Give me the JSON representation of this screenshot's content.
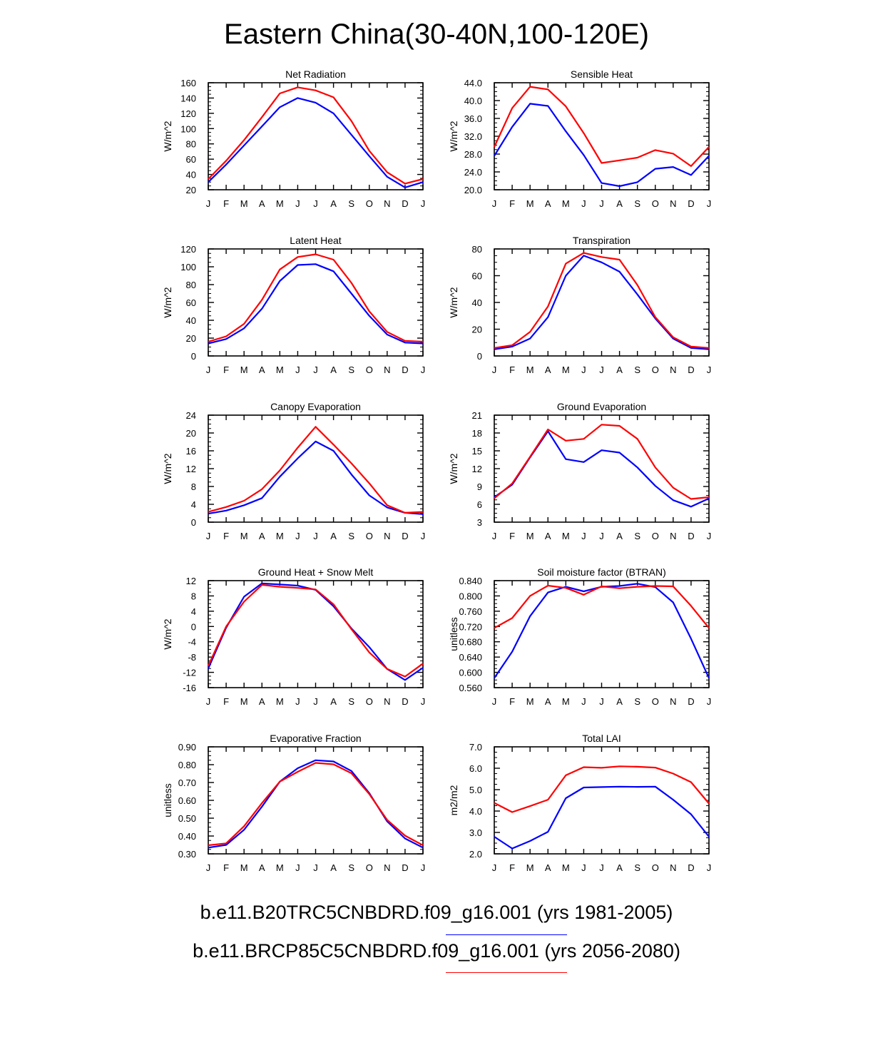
{
  "title": "Eastern China(30-40N,100-120E)",
  "month_labels": [
    "J",
    "F",
    "M",
    "A",
    "M",
    "J",
    "J",
    "A",
    "S",
    "O",
    "N",
    "D",
    "J"
  ],
  "colors": {
    "run1": "#0000ff",
    "run2": "#ff0000"
  },
  "legend": [
    {
      "label": "b.e11.B20TRC5CNBDRD.f09_g16.001 (yrs 1981-2005)",
      "color": "#0000ff"
    },
    {
      "label": "b.e11.BRCP85C5CNBDRD.f09_g16.001 (yrs 2056-2080)",
      "color": "#ff0000"
    }
  ],
  "chart_data": [
    {
      "type": "line",
      "title": "Net Radiation",
      "ylabel": "W/m^2",
      "ylim": [
        20,
        160
      ],
      "yticks": [
        "20",
        "40",
        "60",
        "80",
        "100",
        "120",
        "140",
        "160"
      ],
      "series": [
        {
          "color": "#0000ff",
          "values": [
            30,
            53,
            78,
            103,
            128,
            140,
            134,
            120,
            92,
            64,
            37,
            23,
            30
          ]
        },
        {
          "color": "#ff0000",
          "values": [
            34,
            58,
            85,
            115,
            146,
            154,
            150,
            141,
            110,
            71,
            43,
            28,
            34
          ]
        }
      ]
    },
    {
      "type": "line",
      "title": "Sensible Heat",
      "ylabel": "W/m^2",
      "ylim": [
        20,
        44
      ],
      "yticks": [
        "20.0",
        "24.0",
        "28.0",
        "32.0",
        "36.0",
        "40.0",
        "44.0"
      ],
      "series": [
        {
          "color": "#0000ff",
          "values": [
            27.6,
            34.1,
            39.3,
            38.8,
            33.1,
            27.8,
            21.5,
            20.8,
            21.7,
            24.7,
            25.1,
            23.3,
            27.6
          ]
        },
        {
          "color": "#ff0000",
          "values": [
            29.6,
            38.3,
            43.1,
            42.5,
            38.7,
            32.7,
            26.0,
            26.6,
            27.2,
            28.9,
            28.1,
            25.3,
            29.6
          ]
        }
      ]
    },
    {
      "type": "line",
      "title": "Latent Heat",
      "ylabel": "W/m^2",
      "ylim": [
        0,
        120
      ],
      "yticks": [
        "0",
        "20",
        "40",
        "60",
        "80",
        "100",
        "120"
      ],
      "series": [
        {
          "color": "#0000ff",
          "values": [
            14,
            19,
            31,
            53,
            84,
            102,
            103,
            95,
            70,
            45,
            24,
            15,
            14
          ]
        },
        {
          "color": "#ff0000",
          "values": [
            16,
            22,
            36,
            63,
            97,
            111,
            114,
            108,
            82,
            50,
            27,
            17,
            16
          ]
        }
      ]
    },
    {
      "type": "line",
      "title": "Transpiration",
      "ylabel": "W/m^2",
      "ylim": [
        0,
        80
      ],
      "yticks": [
        "0",
        "20",
        "40",
        "60",
        "80"
      ],
      "series": [
        {
          "color": "#0000ff",
          "values": [
            5,
            7,
            13,
            29,
            60,
            75,
            70,
            63,
            46,
            28,
            13,
            6,
            5
          ]
        },
        {
          "color": "#ff0000",
          "values": [
            6,
            8,
            18,
            37,
            69,
            77,
            74,
            72,
            53,
            29,
            14,
            7,
            6
          ]
        }
      ]
    },
    {
      "type": "line",
      "title": "Canopy Evaporation",
      "ylabel": "W/m^2",
      "ylim": [
        0,
        24
      ],
      "yticks": [
        "0",
        "4",
        "8",
        "12",
        "16",
        "20",
        "24"
      ],
      "series": [
        {
          "color": "#0000ff",
          "values": [
            1.9,
            2.6,
            3.8,
            5.4,
            10.2,
            14.3,
            18.1,
            16.0,
            10.7,
            6.0,
            3.3,
            2.1,
            1.8
          ]
        },
        {
          "color": "#ff0000",
          "values": [
            2.3,
            3.4,
            4.8,
            7.4,
            11.6,
            16.7,
            21.4,
            17.4,
            13.2,
            8.7,
            3.8,
            2.1,
            2.3
          ]
        }
      ]
    },
    {
      "type": "line",
      "title": "Ground Evaporation",
      "ylabel": "W/m^2",
      "ylim": [
        3,
        21
      ],
      "yticks": [
        "3",
        "6",
        "9",
        "12",
        "15",
        "18",
        "21"
      ],
      "series": [
        {
          "color": "#0000ff",
          "values": [
            7.2,
            9.3,
            13.9,
            18.3,
            13.6,
            13.1,
            15.1,
            14.7,
            12.2,
            9.1,
            6.7,
            5.6,
            7.0
          ]
        },
        {
          "color": "#ff0000",
          "values": [
            7.0,
            9.5,
            14.0,
            18.6,
            16.7,
            17.0,
            19.4,
            19.2,
            17.0,
            12.2,
            8.8,
            6.9,
            7.2
          ]
        }
      ]
    },
    {
      "type": "line",
      "title": "Ground Heat + Snow Melt",
      "ylabel": "W/m^2",
      "ylim": [
        -16,
        12
      ],
      "yticks": [
        "-16",
        "-12",
        "-8",
        "-4",
        "0",
        "4",
        "8",
        "12"
      ],
      "series": [
        {
          "color": "#0000ff",
          "values": [
            -11.0,
            -0.3,
            7.8,
            11.3,
            11.0,
            10.7,
            9.6,
            5.3,
            -0.5,
            -5.4,
            -11.1,
            -14.0,
            -10.8
          ]
        },
        {
          "color": "#ff0000",
          "values": [
            -10.3,
            0.0,
            6.5,
            10.9,
            10.4,
            10.1,
            9.7,
            5.8,
            -0.7,
            -6.8,
            -11.1,
            -13.1,
            -9.7
          ]
        }
      ]
    },
    {
      "type": "line",
      "title": "Soil moisture factor (BTRAN)",
      "ylabel": "unitless",
      "ylim": [
        0.56,
        0.84
      ],
      "yticks": [
        "0.560",
        "0.600",
        "0.640",
        "0.680",
        "0.720",
        "0.760",
        "0.800",
        "0.840"
      ],
      "series": [
        {
          "color": "#0000ff",
          "values": [
            0.585,
            0.654,
            0.747,
            0.809,
            0.824,
            0.812,
            0.824,
            0.826,
            0.832,
            0.823,
            0.783,
            0.688,
            0.585
          ]
        },
        {
          "color": "#ff0000",
          "values": [
            0.716,
            0.742,
            0.8,
            0.827,
            0.821,
            0.803,
            0.825,
            0.82,
            0.824,
            0.826,
            0.825,
            0.774,
            0.716
          ]
        }
      ]
    },
    {
      "type": "line",
      "title": "Evaporative Fraction",
      "ylabel": "unitless",
      "ylim": [
        0.3,
        0.9
      ],
      "yticks": [
        "0.30",
        "0.40",
        "0.50",
        "0.60",
        "0.70",
        "0.80",
        "0.90"
      ],
      "series": [
        {
          "color": "#0000ff",
          "values": [
            0.335,
            0.35,
            0.435,
            0.565,
            0.705,
            0.78,
            0.825,
            0.818,
            0.765,
            0.64,
            0.482,
            0.386,
            0.335
          ]
        },
        {
          "color": "#ff0000",
          "values": [
            0.348,
            0.359,
            0.455,
            0.585,
            0.705,
            0.76,
            0.81,
            0.802,
            0.752,
            0.635,
            0.49,
            0.402,
            0.348
          ]
        }
      ]
    },
    {
      "type": "line",
      "title": "Total LAI",
      "ylabel": "m2/m2",
      "ylim": [
        2.0,
        7.0
      ],
      "yticks": [
        "2.0",
        "3.0",
        "4.0",
        "5.0",
        "6.0",
        "7.0"
      ],
      "series": [
        {
          "color": "#0000ff",
          "values": [
            2.8,
            2.25,
            2.6,
            3.03,
            4.6,
            5.1,
            5.12,
            5.14,
            5.13,
            5.14,
            4.53,
            3.85,
            2.8
          ]
        },
        {
          "color": "#ff0000",
          "values": [
            4.38,
            3.95,
            4.23,
            4.53,
            5.67,
            6.05,
            6.02,
            6.09,
            6.07,
            6.03,
            5.75,
            5.35,
            4.35
          ]
        }
      ]
    }
  ]
}
